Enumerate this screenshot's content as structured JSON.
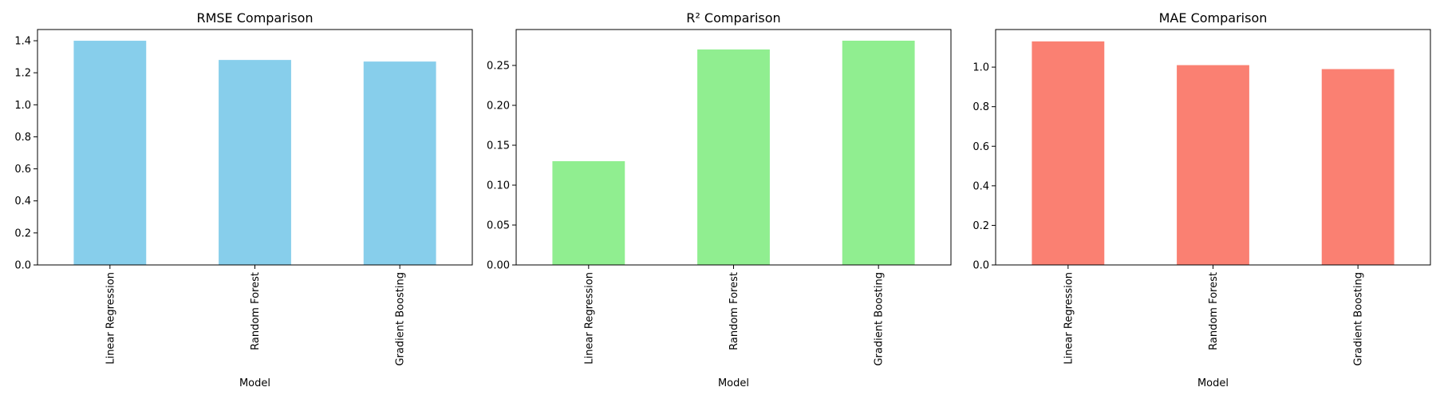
{
  "chart_data": [
    {
      "type": "bar",
      "title": "RMSE Comparison",
      "xlabel": "Model",
      "ylabel": "",
      "categories": [
        "Linear Regression",
        "Random Forest",
        "Gradient Boosting"
      ],
      "values": [
        1.4,
        1.28,
        1.27
      ],
      "ylim": [
        0,
        1.47
      ],
      "yticks": [
        "0.0",
        "0.2",
        "0.4",
        "0.6",
        "0.8",
        "1.0",
        "1.2",
        "1.4"
      ],
      "color": "#87CEEB",
      "grid": false
    },
    {
      "type": "bar",
      "title": "R² Comparison",
      "xlabel": "Model",
      "ylabel": "",
      "categories": [
        "Linear Regression",
        "Random Forest",
        "Gradient Boosting"
      ],
      "values": [
        0.13,
        0.27,
        0.281
      ],
      "ylim": [
        0,
        0.295
      ],
      "yticks": [
        "0.00",
        "0.05",
        "0.10",
        "0.15",
        "0.20",
        "0.25"
      ],
      "color": "#90EE90",
      "grid": false
    },
    {
      "type": "bar",
      "title": "MAE Comparison",
      "xlabel": "Model",
      "ylabel": "",
      "categories": [
        "Linear Regression",
        "Random Forest",
        "Gradient Boosting"
      ],
      "values": [
        1.13,
        1.01,
        0.99
      ],
      "ylim": [
        0,
        1.19
      ],
      "yticks": [
        "0.0",
        "0.2",
        "0.4",
        "0.6",
        "0.8",
        "1.0"
      ],
      "color": "#FA8072",
      "grid": false
    }
  ]
}
